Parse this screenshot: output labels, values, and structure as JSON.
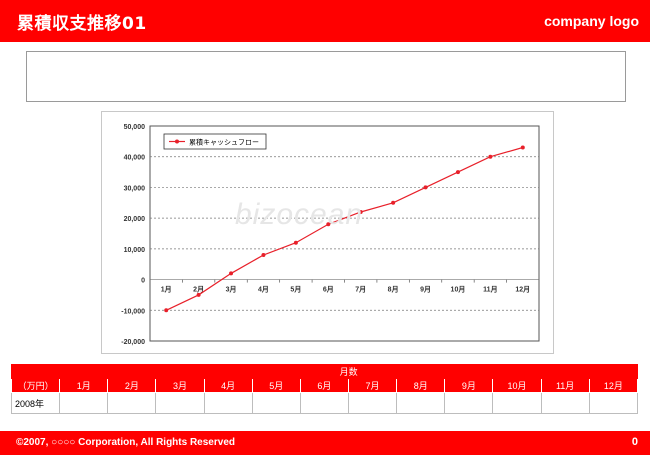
{
  "header": {
    "title": "累積収支推移01",
    "logo": "company logo"
  },
  "watermark": "bizocean",
  "colors": {
    "accent": "#ff0000",
    "series": "#e8202a"
  },
  "chart_data": {
    "type": "line",
    "categories": [
      "1月",
      "2月",
      "3月",
      "4月",
      "5月",
      "6月",
      "7月",
      "8月",
      "9月",
      "10月",
      "11月",
      "12月"
    ],
    "series": [
      {
        "name": "累積キャッシュフロー",
        "values": [
          -10000,
          -5000,
          2000,
          8000,
          12000,
          18000,
          22000,
          25000,
          30000,
          35000,
          40000,
          43000
        ]
      }
    ],
    "ylim": [
      -20000,
      50000
    ],
    "yticks": [
      -20000,
      -10000,
      0,
      10000,
      20000,
      30000,
      40000,
      50000
    ],
    "ytick_labels": [
      "-20,000",
      "-10,000",
      "0",
      "10,000",
      "20,000",
      "30,000",
      "40,000",
      "50,000"
    ],
    "grid": true,
    "legend": "top-left"
  },
  "table": {
    "group_header": "月数",
    "unit_label": "（万円）",
    "months": [
      "1月",
      "2月",
      "3月",
      "4月",
      "5月",
      "6月",
      "7月",
      "8月",
      "9月",
      "10月",
      "11月",
      "12月"
    ],
    "row_label": "2008年"
  },
  "footer": {
    "copyright": "©2007, ○○○○ Corporation, All Rights Reserved",
    "page": "0"
  }
}
